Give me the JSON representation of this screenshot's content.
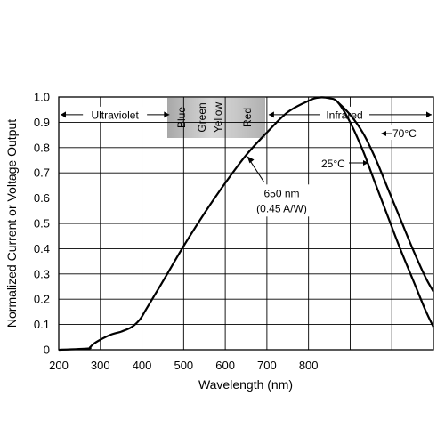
{
  "chart_data": {
    "type": "line",
    "title": "",
    "xlabel": "Wavelength (nm)",
    "ylabel": "Normalized Current or Voltage Output",
    "xlim": [
      200,
      1100
    ],
    "ylim": [
      0,
      1.0
    ],
    "grid": true,
    "x_ticks": [
      200,
      300,
      400,
      500,
      600,
      700,
      800
    ],
    "x_tick_labels": [
      "200",
      "300",
      "400",
      "500",
      "600",
      "700",
      "800"
    ],
    "y_ticks": [
      0,
      0.1,
      0.2,
      0.3,
      0.4,
      0.5,
      0.6,
      0.7,
      0.8,
      0.9,
      1.0
    ],
    "y_tick_labels": [
      "0",
      "0.1",
      "0.2",
      "0.3",
      "0.4",
      "0.5",
      "0.6",
      "0.7",
      "0.8",
      "0.9",
      "1.0"
    ],
    "series": [
      {
        "name": "25°C",
        "x": [
          200,
          270,
          275,
          285,
          300,
          325,
          350,
          375,
          395,
          410,
          450,
          500,
          550,
          600,
          650,
          700,
          750,
          800,
          825,
          850,
          870,
          900,
          930,
          960,
          990,
          1020,
          1050,
          1080,
          1100
        ],
        "y": [
          0,
          0.005,
          0.01,
          0.025,
          0.04,
          0.06,
          0.072,
          0.09,
          0.12,
          0.16,
          0.27,
          0.41,
          0.54,
          0.66,
          0.77,
          0.86,
          0.94,
          0.985,
          0.998,
          0.995,
          0.98,
          0.9,
          0.79,
          0.66,
          0.53,
          0.4,
          0.28,
          0.16,
          0.09
        ]
      },
      {
        "name": "70°C",
        "x": [
          870,
          900,
          930,
          960,
          990,
          1020,
          1050,
          1080,
          1100
        ],
        "y": [
          0.98,
          0.93,
          0.86,
          0.76,
          0.64,
          0.52,
          0.4,
          0.29,
          0.23
        ]
      }
    ],
    "bands": [
      {
        "label": "Ultraviolet",
        "x_start": 200,
        "x_end": 470
      },
      {
        "label": "Infrared",
        "x_start": 700,
        "x_end": 1100
      }
    ],
    "band_colors": [
      "Blue",
      "Green",
      "Yellow",
      "Red"
    ],
    "annotations": [
      {
        "text": "650 nm",
        "x": 650,
        "y": 0.77
      },
      {
        "text": "(0.45 A/W)",
        "x": 650,
        "y": 0.77
      },
      {
        "text": "70°C",
        "x": 1000,
        "y": 0.83
      },
      {
        "text": "25°C",
        "x": 960,
        "y": 0.73
      }
    ]
  }
}
